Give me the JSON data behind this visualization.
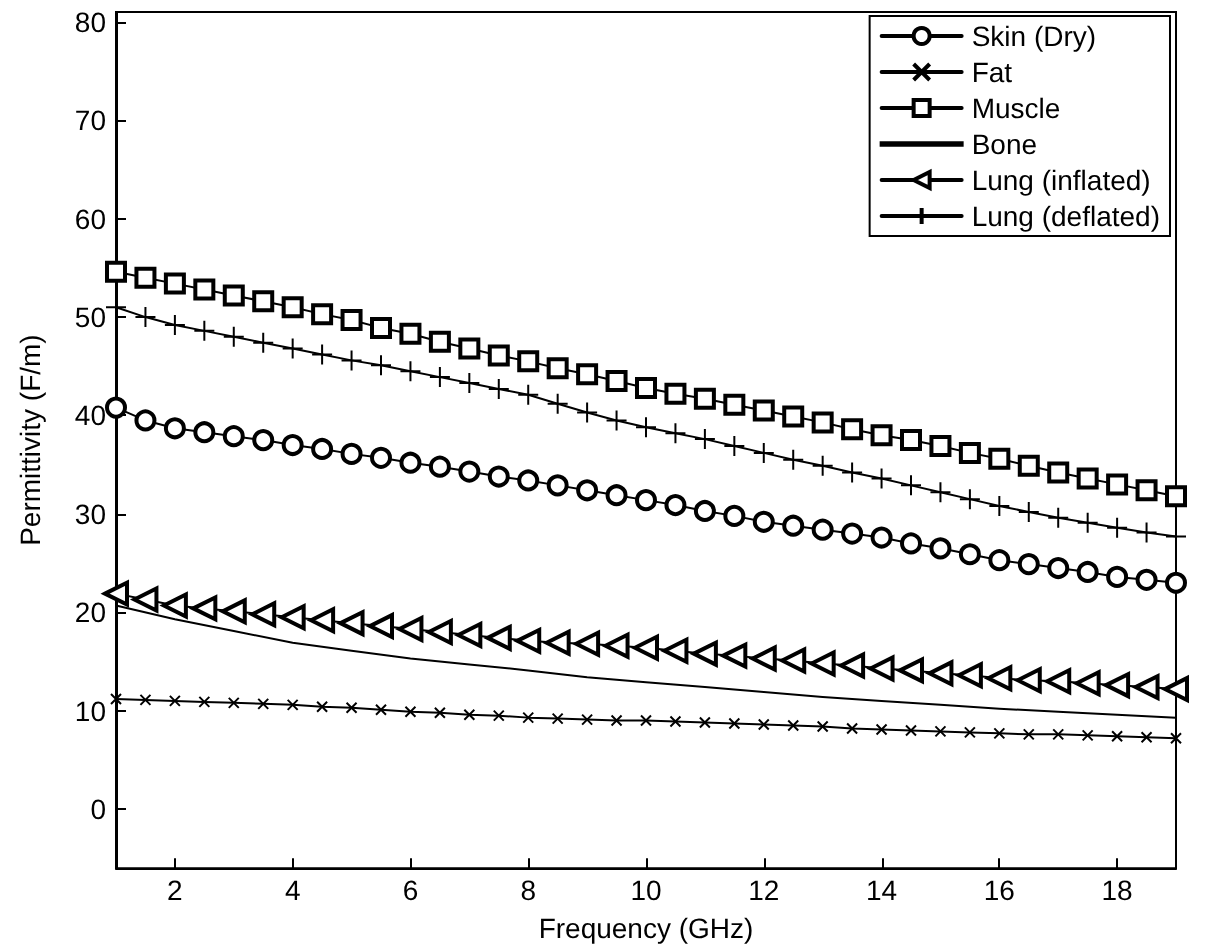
{
  "chart_data": {
    "type": "line",
    "xlabel": "Frequency (GHz)",
    "ylabel": "Permittivity (F/m)",
    "x": [
      1,
      1.5,
      2,
      2.5,
      3,
      3.5,
      4,
      4.5,
      5,
      5.5,
      6,
      6.5,
      7,
      7.5,
      8,
      8.5,
      9,
      9.5,
      10,
      10.5,
      11,
      11.5,
      12,
      12.5,
      13,
      13.5,
      14,
      14.5,
      15,
      15.5,
      16,
      16.5,
      17,
      17.5,
      18,
      18.5,
      19
    ],
    "xlim": [
      1,
      19
    ],
    "xticks": [
      2,
      4,
      6,
      8,
      10,
      12,
      14,
      16,
      18
    ],
    "ylim": [
      -6,
      81
    ],
    "yticks": [
      0,
      10,
      20,
      30,
      40,
      50,
      60,
      70,
      80
    ],
    "grid": false,
    "legend": "top right",
    "line_style": "solid",
    "series": [
      {
        "name": "Skin (Dry)",
        "color": "#000000",
        "marker": "circle",
        "values": [
          40.8,
          39.5,
          38.7,
          38.3,
          37.9,
          37.5,
          37.0,
          36.6,
          36.1,
          35.7,
          35.2,
          34.8,
          34.3,
          33.8,
          33.4,
          32.9,
          32.4,
          31.9,
          31.4,
          30.9,
          30.3,
          29.8,
          29.2,
          28.8,
          28.4,
          28.0,
          27.6,
          27.0,
          26.5,
          25.9,
          25.3,
          24.9,
          24.5,
          24.1,
          23.6,
          23.3,
          23.0
        ]
      },
      {
        "name": "Fat",
        "color": "#000000",
        "marker": "cross",
        "values": [
          11.2,
          11.1,
          11.0,
          10.9,
          10.8,
          10.7,
          10.6,
          10.4,
          10.3,
          10.1,
          9.9,
          9.8,
          9.6,
          9.5,
          9.3,
          9.2,
          9.1,
          9.0,
          9.0,
          8.9,
          8.8,
          8.7,
          8.6,
          8.5,
          8.4,
          8.2,
          8.1,
          8.0,
          7.9,
          7.8,
          7.7,
          7.6,
          7.6,
          7.5,
          7.4,
          7.3,
          7.2
        ]
      },
      {
        "name": "Muscle",
        "color": "#000000",
        "marker": "square",
        "values": [
          54.6,
          54.0,
          53.4,
          52.8,
          52.2,
          51.6,
          51.0,
          50.3,
          49.7,
          48.9,
          48.3,
          47.5,
          46.8,
          46.1,
          45.5,
          44.8,
          44.2,
          43.5,
          42.8,
          42.2,
          41.7,
          41.1,
          40.5,
          39.9,
          39.3,
          38.6,
          38.0,
          37.5,
          36.9,
          36.2,
          35.6,
          34.9,
          34.2,
          33.6,
          33.0,
          32.4,
          31.8
        ]
      },
      {
        "name": "Bone",
        "color": "#000000",
        "marker": "none",
        "x": [
          1,
          2,
          3,
          4,
          5,
          6,
          7,
          8,
          9,
          10,
          11,
          12,
          13,
          14,
          15,
          16,
          17,
          18,
          19
        ],
        "values": [
          20.7,
          19.3,
          18.1,
          16.9,
          16.1,
          15.3,
          14.7,
          14.1,
          13.4,
          12.9,
          12.4,
          11.9,
          11.4,
          11.0,
          10.6,
          10.2,
          9.9,
          9.6,
          9.3
        ]
      },
      {
        "name": "Lung (inflated)",
        "color": "#000000",
        "marker": "triangle",
        "values": [
          21.9,
          21.3,
          20.7,
          20.4,
          20.1,
          19.8,
          19.5,
          19.2,
          18.9,
          18.6,
          18.3,
          18.0,
          17.7,
          17.4,
          17.1,
          16.9,
          16.8,
          16.6,
          16.4,
          16.1,
          15.8,
          15.6,
          15.3,
          15.1,
          14.8,
          14.6,
          14.3,
          14.1,
          13.8,
          13.6,
          13.3,
          13.1,
          13.0,
          12.8,
          12.6,
          12.4,
          12.2
        ]
      },
      {
        "name": "Lung (deflated)",
        "color": "#000000",
        "marker": "plus",
        "values": [
          51.0,
          50.0,
          49.2,
          48.6,
          48.0,
          47.4,
          46.8,
          46.2,
          45.6,
          45.1,
          44.5,
          43.9,
          43.3,
          42.7,
          42.1,
          41.2,
          40.3,
          39.5,
          38.8,
          38.2,
          37.6,
          36.9,
          36.2,
          35.5,
          34.9,
          34.2,
          33.6,
          32.9,
          32.2,
          31.5,
          30.8,
          30.2,
          29.6,
          29.1,
          28.6,
          28.1,
          27.7
        ]
      }
    ]
  }
}
